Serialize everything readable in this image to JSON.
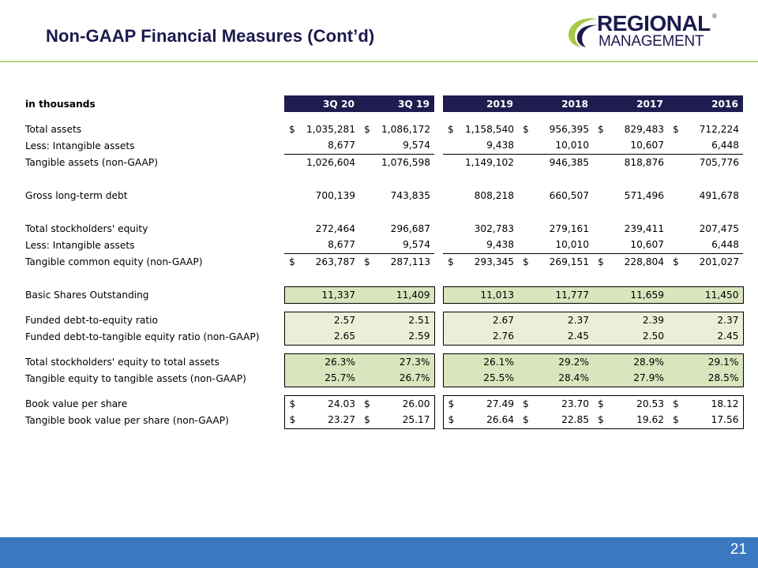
{
  "title": "Non-GAAP Financial Measures (Cont’d)",
  "logo": {
    "line1": "REGIONAL",
    "line2": "MANAGEMENT",
    "mark": "®",
    "colors": {
      "navy": "#1c1a4e",
      "green": "#a8c84a"
    }
  },
  "page_number": "21",
  "table": {
    "unit_label": "in thousands",
    "columns": [
      "3Q 20",
      "3Q 19",
      "2019",
      "2018",
      "2017",
      "2016"
    ],
    "rows": {
      "total_assets": {
        "label": "Total assets",
        "cur": [
          "$",
          "$",
          "$",
          "$",
          "$",
          "$"
        ],
        "values": [
          "1,035,281",
          "1,086,172",
          "1,158,540",
          "956,395",
          "829,483",
          "712,224"
        ]
      },
      "less_intangible_1": {
        "label": "Less: Intangible assets",
        "values": [
          "8,677",
          "9,574",
          "9,438",
          "10,010",
          "10,607",
          "6,448"
        ]
      },
      "tangible_assets": {
        "label": "Tangible assets (non-GAAP)",
        "values": [
          "1,026,604",
          "1,076,598",
          "1,149,102",
          "946,385",
          "818,876",
          "705,776"
        ]
      },
      "gross_debt": {
        "label": "Gross long-term debt",
        "values": [
          "700,139",
          "743,835",
          "808,218",
          "660,507",
          "571,496",
          "491,678"
        ]
      },
      "total_equity": {
        "label": "Total stockholders' equity",
        "values": [
          "272,464",
          "296,687",
          "302,783",
          "279,161",
          "239,411",
          "207,475"
        ]
      },
      "less_intangible_2": {
        "label": "Less: Intangible assets",
        "values": [
          "8,677",
          "9,574",
          "9,438",
          "10,010",
          "10,607",
          "6,448"
        ]
      },
      "tangible_common_equity": {
        "label": "Tangible common equity (non-GAAP)",
        "cur": [
          "$",
          "$",
          "$",
          "$",
          "$",
          "$"
        ],
        "values": [
          "263,787",
          "287,113",
          "293,345",
          "269,151",
          "228,804",
          "201,027"
        ]
      },
      "basic_shares": {
        "label": "Basic Shares Outstanding",
        "values": [
          "11,337",
          "11,409",
          "11,013",
          "11,777",
          "11,659",
          "11,450"
        ]
      },
      "debt_equity_ratio": {
        "label": "Funded debt-to-equity ratio",
        "values": [
          "2.57",
          "2.51",
          "2.67",
          "2.37",
          "2.39",
          "2.37"
        ]
      },
      "debt_tangible_ratio": {
        "label": "Funded debt-to-tangible equity ratio (non-GAAP)",
        "values": [
          "2.65",
          "2.59",
          "2.76",
          "2.45",
          "2.50",
          "2.45"
        ]
      },
      "equity_to_assets": {
        "label": "Total stockholders' equity to total assets",
        "values": [
          "26.3%",
          "27.3%",
          "26.1%",
          "29.2%",
          "28.9%",
          "29.1%"
        ]
      },
      "tangible_to_tangible": {
        "label": "Tangible equity to tangible assets (non-GAAP)",
        "values": [
          "25.7%",
          "26.7%",
          "25.5%",
          "28.4%",
          "27.9%",
          "28.5%"
        ]
      },
      "book_value": {
        "label": "Book value per share",
        "cur": [
          "$",
          "$",
          "$",
          "$",
          "$",
          "$"
        ],
        "values": [
          "24.03",
          "26.00",
          "27.49",
          "23.70",
          "20.53",
          "18.12"
        ]
      },
      "tangible_book_value": {
        "label": "Tangible book value per share (non-GAAP)",
        "cur": [
          "$",
          "$",
          "$",
          "$",
          "$",
          "$"
        ],
        "values": [
          "23.27",
          "25.17",
          "26.64",
          "22.85",
          "19.62",
          "17.56"
        ]
      }
    }
  },
  "colors": {
    "header_bg": "#1f1c50",
    "fill_green": "#d9e5bd",
    "fill_light": "#eaf0d8",
    "footer": "#3b78c0",
    "rule": "#b4d07a"
  }
}
